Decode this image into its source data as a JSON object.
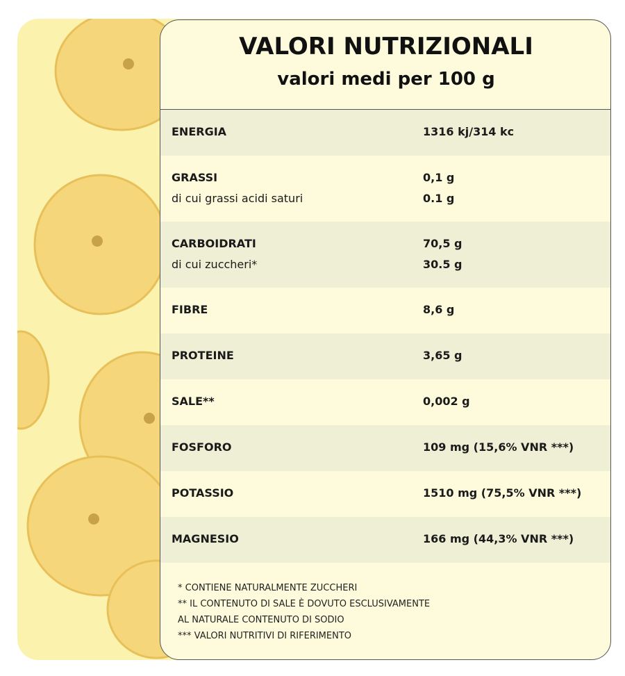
{
  "header": {
    "title": "VALORI NUTRIZIONALI",
    "subtitle": "valori medi per 100 g"
  },
  "table": {
    "rows": [
      [
        [
          "ENERGIA",
          "1316 kj/314 kc"
        ]
      ],
      [
        [
          "GRASSI",
          "0,1 g"
        ],
        [
          "di cui grassi acidi saturi",
          "0.1 g"
        ]
      ],
      [
        [
          "CARBOIDRATI",
          "70,5 g"
        ],
        [
          "di cui zuccheri*",
          "30.5 g"
        ]
      ],
      [
        [
          "FIBRE",
          "8,6 g"
        ]
      ],
      [
        [
          "PROTEINE",
          "3,65 g"
        ]
      ],
      [
        [
          "SALE**",
          "0,002 g"
        ]
      ],
      [
        [
          "FOSFORO",
          "109 mg (15,6% VNR ***)"
        ]
      ],
      [
        [
          "POTASSIO",
          "1510 mg (75,5% VNR ***)"
        ]
      ],
      [
        [
          "MAGNESIO",
          "166 mg (44,3% VNR ***)"
        ]
      ]
    ]
  },
  "footnotes": [
    "* CONTIENE NATURALMENTE ZUCCHERI",
    "** IL CONTENUTO DI SALE È DOVUTO ESCLUSIVAMENTE",
    "AL NATURALE CONTENUTO DI SODIO",
    "*** VALORI NUTRITIVI DI RIFERIMENTO"
  ]
}
